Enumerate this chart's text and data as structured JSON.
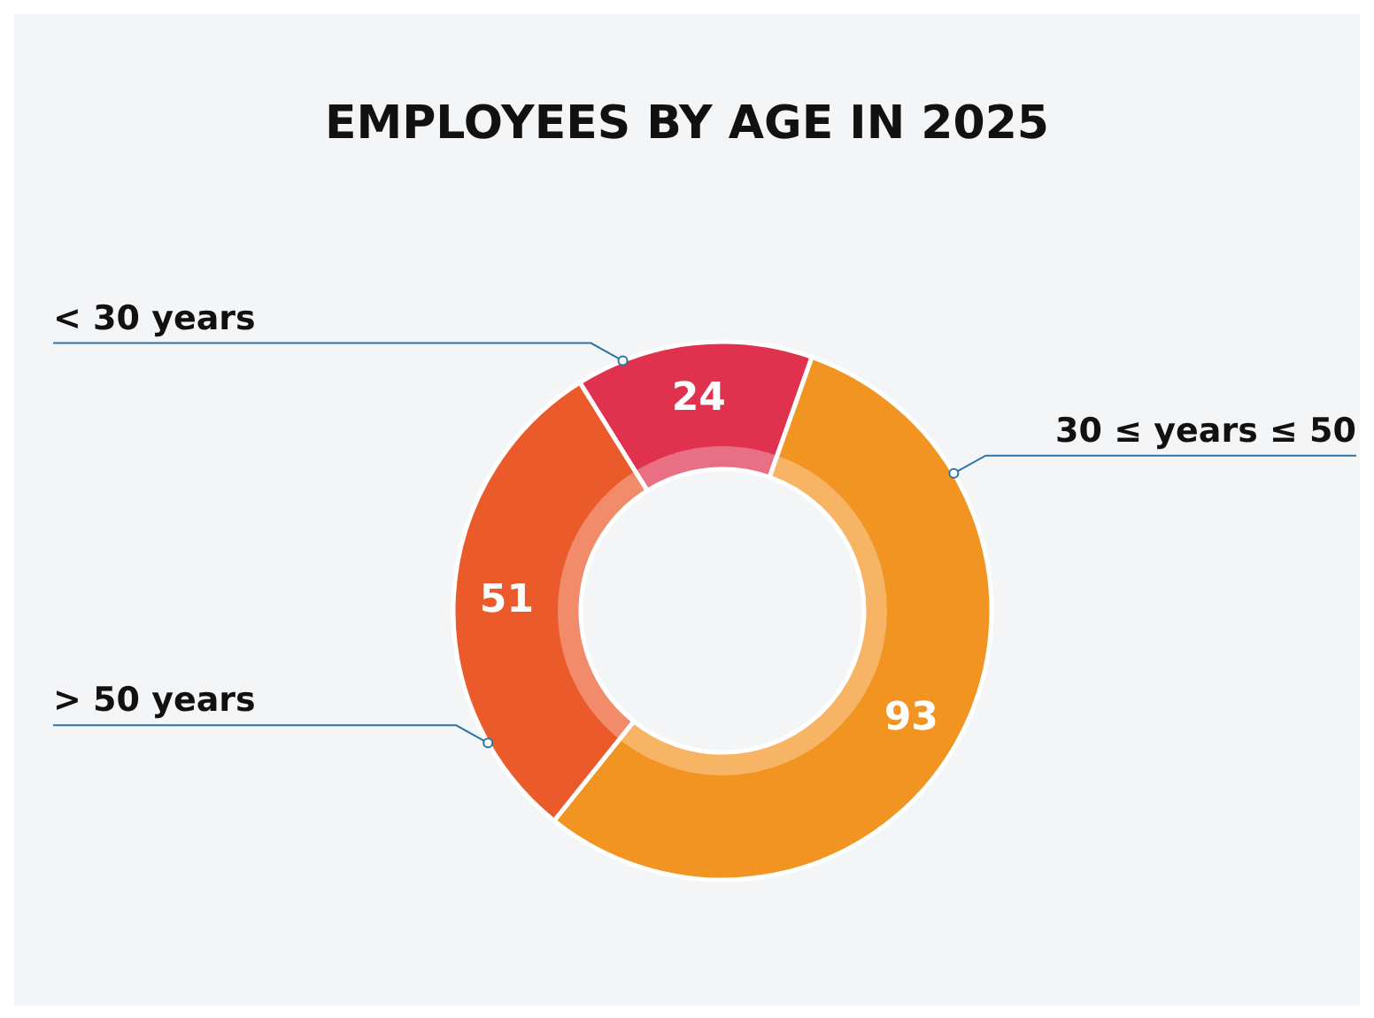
{
  "chart_data": {
    "type": "donut",
    "title": "EMPLOYEES BY AGE IN 2025",
    "categories": [
      "< 30 years",
      "30 ≤ years ≤ 50",
      "> 50 years"
    ],
    "values": [
      24,
      93,
      51
    ],
    "colors": [
      "#e0314f",
      "#f29422",
      "#eb5a2a"
    ],
    "data_labels": true,
    "legend": false
  }
}
